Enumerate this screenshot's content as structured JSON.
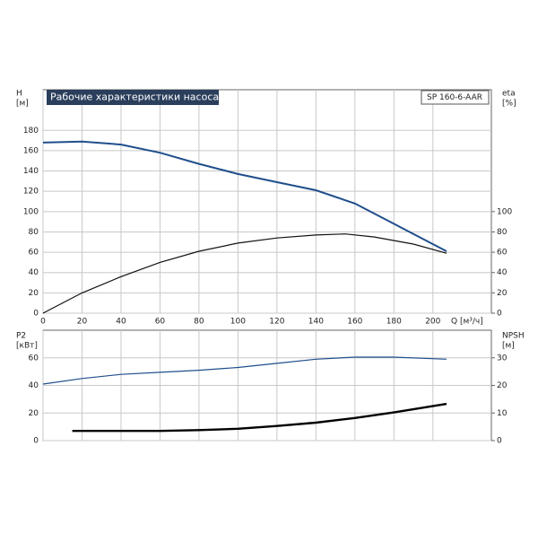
{
  "chart_data": [
    {
      "type": "line",
      "title": "Рабочие характеристики насоса",
      "subtitle": "SP 160-6-AAR",
      "ylabel": [
        "H",
        "[м]"
      ],
      "y2label": [
        "eta",
        "[%]"
      ],
      "xlabel": "Q [м³/ч]",
      "xlim": [
        0,
        230
      ],
      "xticks": [
        0,
        20,
        40,
        60,
        80,
        100,
        120,
        140,
        160,
        180,
        200
      ],
      "ylim": [
        0,
        220
      ],
      "yticks": [
        0,
        20,
        40,
        60,
        80,
        100,
        120,
        140,
        160,
        180
      ],
      "y2lim": [
        0,
        220
      ],
      "y2ticks": [
        0,
        20,
        40,
        60,
        80,
        100
      ],
      "grid": true,
      "series": [
        {
          "color": "#1f4e8c",
          "width": 2,
          "axis": "y",
          "x": [
            0,
            20,
            40,
            60,
            80,
            100,
            120,
            140,
            160,
            180,
            207
          ],
          "values": [
            168,
            169,
            166,
            158,
            147,
            137,
            129,
            121,
            108,
            88,
            61
          ]
        },
        {
          "color": "#111111",
          "width": 1.2,
          "axis": "y2",
          "x": [
            0,
            20,
            40,
            60,
            80,
            100,
            120,
            140,
            155,
            170,
            190,
            207
          ],
          "values": [
            0,
            20,
            36,
            50,
            61,
            69,
            74,
            77,
            78,
            75,
            68,
            59
          ]
        }
      ]
    },
    {
      "type": "line",
      "ylabel": [
        "P2",
        "[кВт]"
      ],
      "y2label": [
        "NPSH",
        "[м]"
      ],
      "xlim": [
        0,
        230
      ],
      "xticks": [
        0,
        20,
        40,
        60,
        80,
        100,
        120,
        140,
        160,
        180,
        200
      ],
      "ylim": [
        0,
        80
      ],
      "yticks": [
        0,
        20,
        40,
        60
      ],
      "y2lim": [
        0,
        40
      ],
      "y2ticks": [
        0,
        10,
        20,
        30
      ],
      "grid": true,
      "series": [
        {
          "color": "#1f4e8c",
          "width": 1.2,
          "axis": "y",
          "x": [
            0,
            20,
            40,
            60,
            80,
            100,
            120,
            140,
            160,
            180,
            207
          ],
          "values": [
            41,
            45,
            48,
            49.5,
            51,
            53,
            56,
            59,
            60.5,
            60.5,
            59
          ]
        },
        {
          "color": "#000000",
          "width": 2.4,
          "axis": "y2",
          "x": [
            15,
            40,
            60,
            80,
            100,
            120,
            140,
            160,
            180,
            207
          ],
          "values": [
            3.5,
            3.5,
            3.5,
            3.8,
            4.3,
            5.3,
            6.5,
            8.2,
            10.2,
            13.3
          ]
        }
      ]
    }
  ]
}
